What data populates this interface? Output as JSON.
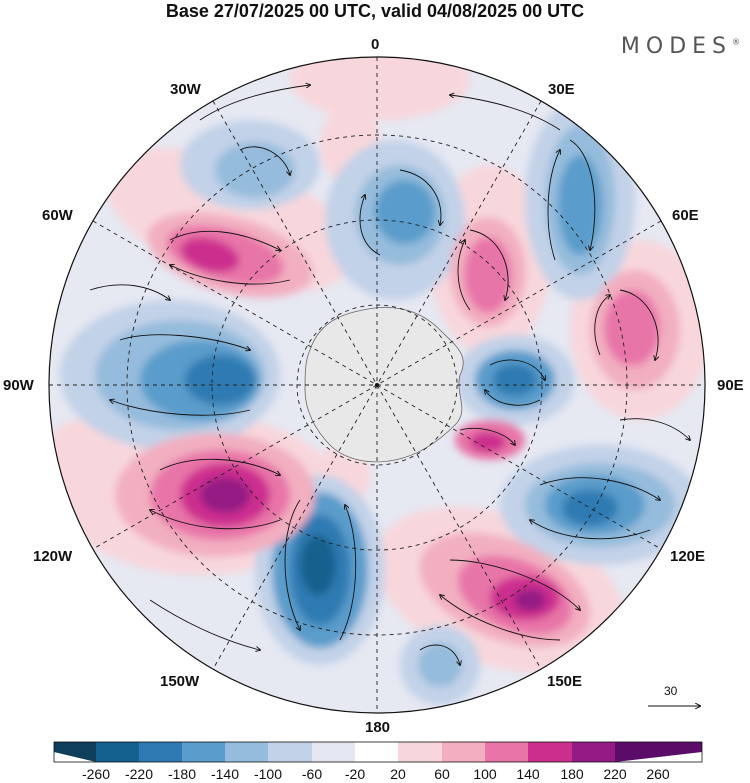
{
  "title": "Base 27/07/2025 00 UTC, valid 04/08/2025 00 UTC",
  "brand": "MODES",
  "brand_mark": "®",
  "longitude_labels": {
    "lon_0": "0",
    "lon_30e": "30E",
    "lon_60e": "60E",
    "lon_90e": "90E",
    "lon_120e": "120E",
    "lon_150e": "150E",
    "lon_180": "180",
    "lon_150w": "150W",
    "lon_120w": "120W",
    "lon_90w": "90W",
    "lon_60w": "60W",
    "lon_30w": "30W"
  },
  "vector_scale": "30",
  "colorbar": {
    "labels": [
      "-260",
      "-220",
      "-180",
      "-140",
      "-100",
      "-60",
      "-20",
      "20",
      "60",
      "100",
      "140",
      "180",
      "220",
      "260"
    ],
    "colors": [
      "#0e3e5a",
      "#14608e",
      "#2d7ab2",
      "#5a9ccb",
      "#95bcdc",
      "#c2d2e8",
      "#e4e7f2",
      "#ffffff",
      "#f8d7dc",
      "#f2afc0",
      "#e874a8",
      "#cc2e8e",
      "#941a84",
      "#5b0b68"
    ]
  }
}
